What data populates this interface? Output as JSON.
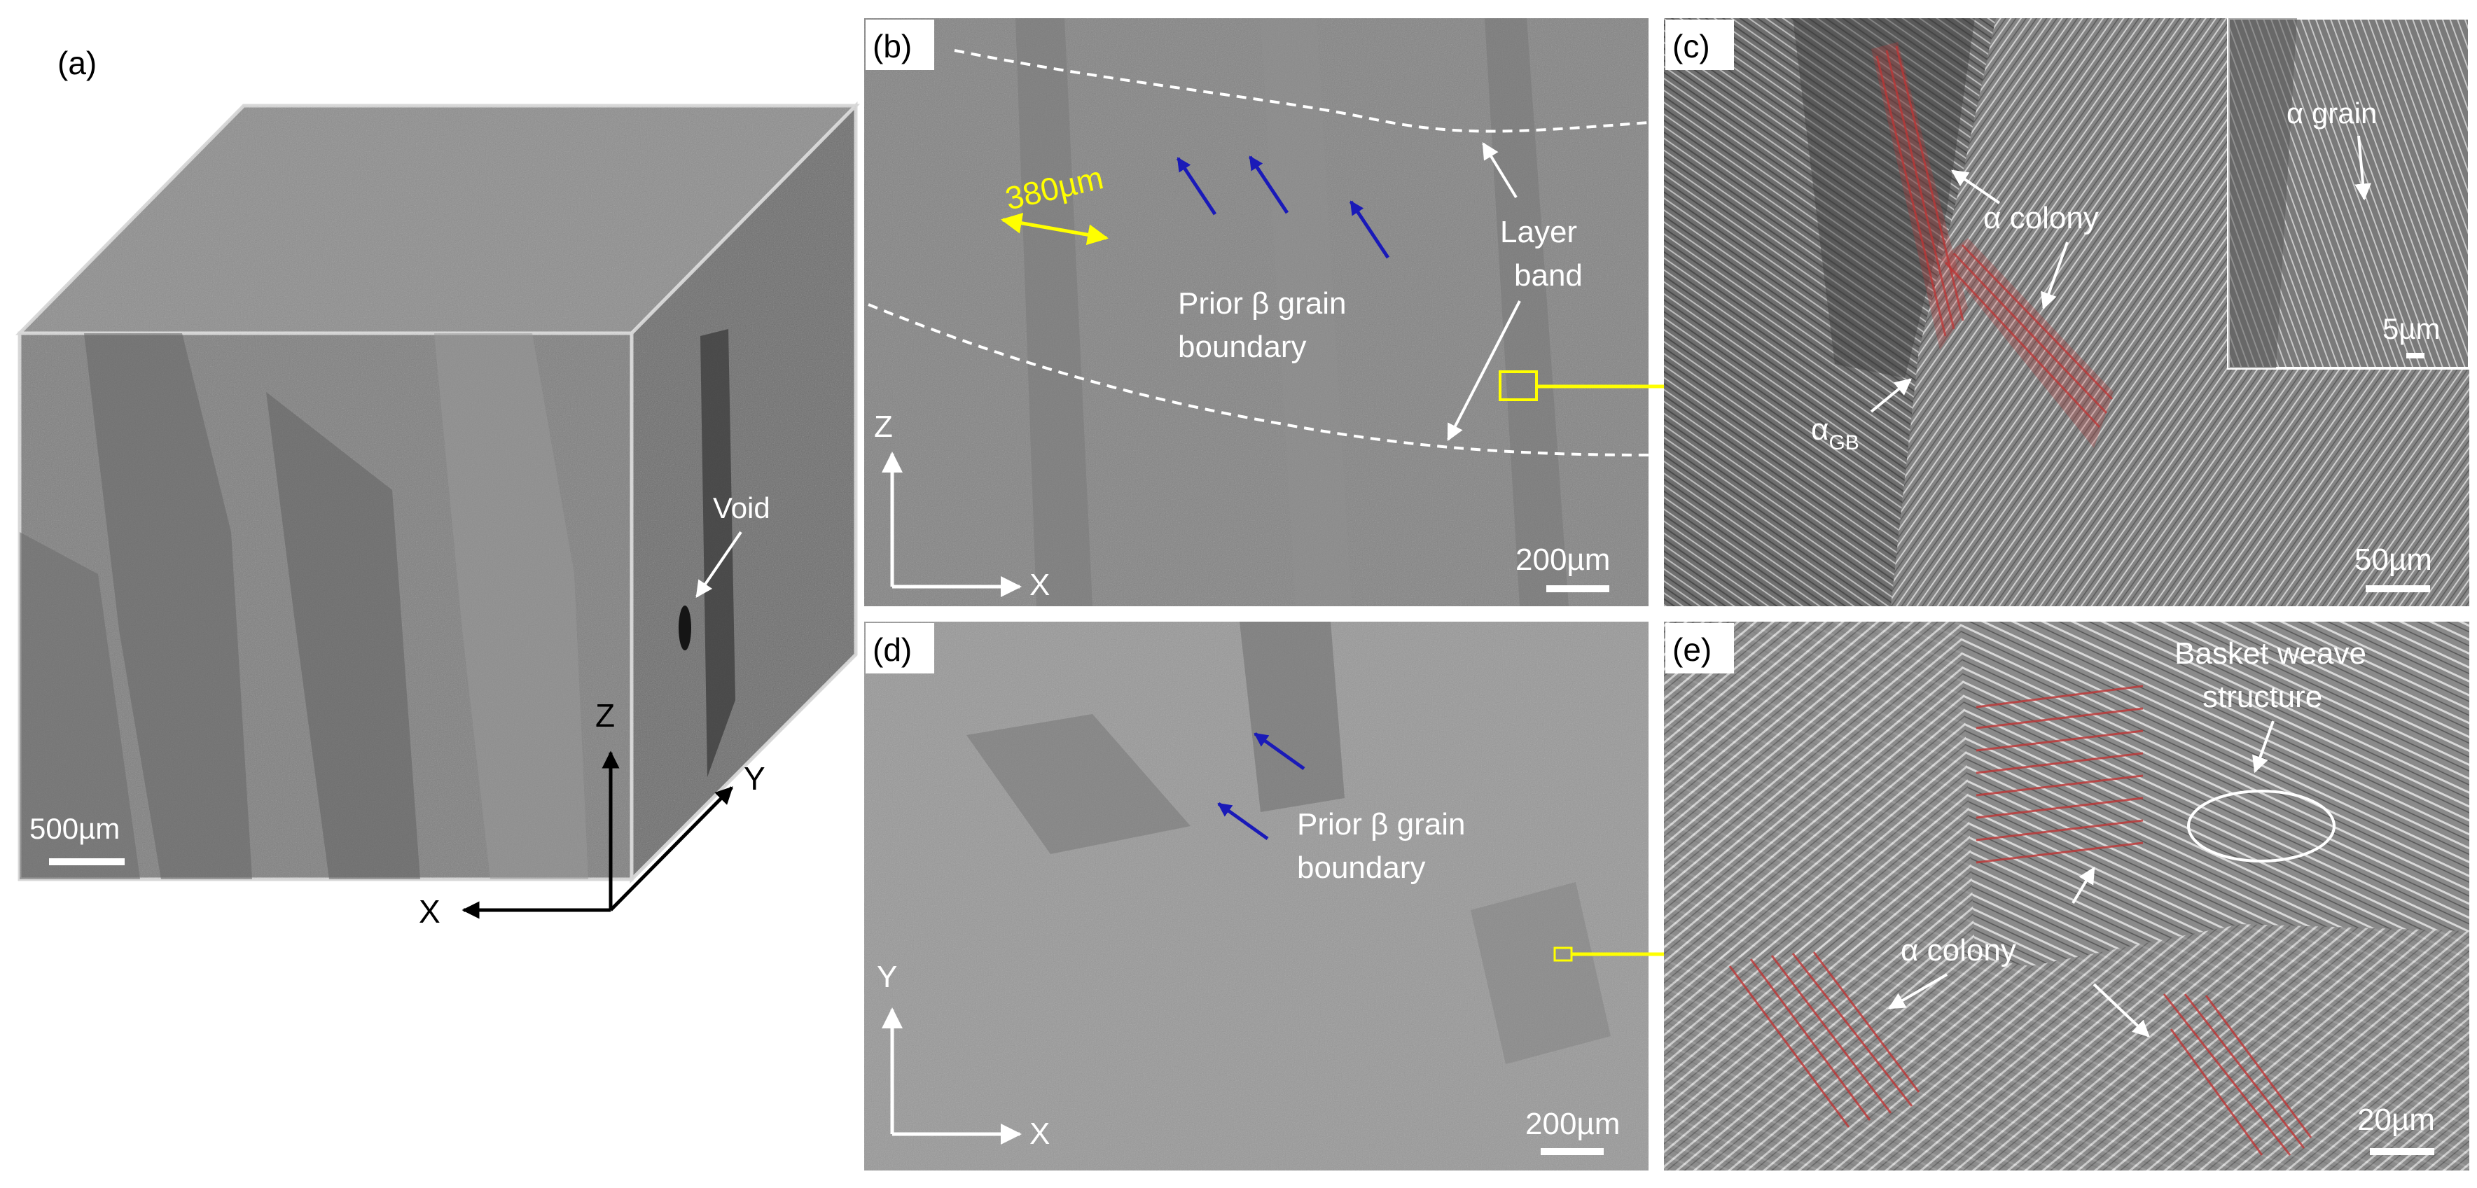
{
  "panels": {
    "a": {
      "label": "(a)",
      "void": "Void",
      "scale": "500µm",
      "axis_z": "Z",
      "axis_y": "Y",
      "axis_x": "X"
    },
    "b": {
      "label": "(b)",
      "width_annotation": "380µm",
      "grain_boundary_line1": "Prior β grain",
      "grain_boundary_line2": "boundary",
      "layer_band_line1": "Layer",
      "layer_band_line2": "band",
      "axis_z": "Z",
      "axis_x": "X",
      "scale": "200µm"
    },
    "c": {
      "label": "(c)",
      "alpha_colony": "α  colony",
      "alpha_gb_main": "α",
      "alpha_gb_sub": "GB",
      "scale": "50µm",
      "inset_alpha_grain": "α grain",
      "inset_scale": "5µm"
    },
    "d": {
      "label": "(d)",
      "grain_boundary_line1": "Prior β grain",
      "grain_boundary_line2": "boundary",
      "axis_y": "Y",
      "axis_x": "X",
      "scale": "200µm"
    },
    "e": {
      "label": "(e)",
      "basket_line1": "Basket weave",
      "basket_line2": "structure",
      "alpha_colony": "α  colony",
      "scale": "20µm"
    }
  },
  "colors": {
    "annotation_yellow": "#ffff00",
    "grain_arrow_blue": "#1a1ab8",
    "colony_overlay_red": "#c03535"
  }
}
